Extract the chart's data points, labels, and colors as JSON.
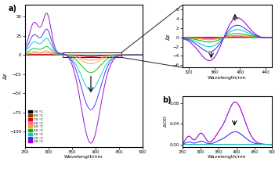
{
  "temps": [
    "90 °C",
    "80 °C",
    "70 °C",
    "60 °C",
    "50 °C",
    "40 °C",
    "30 °C",
    "25 °C",
    "20 °C"
  ],
  "colors": [
    "#000000",
    "#7B3F00",
    "#DD0000",
    "#FF69B4",
    "#FFA500",
    "#00BB00",
    "#00CCCC",
    "#3333FF",
    "#9900CC"
  ],
  "scales_cd": [
    0.003,
    0.007,
    0.02,
    0.06,
    0.1,
    0.2,
    0.4,
    0.62,
    1.0
  ],
  "scales_ld": [
    0.0,
    0.0,
    0.0,
    0.0,
    0.0,
    0.0,
    0.0,
    0.3,
    1.0
  ],
  "wl_min": 250,
  "wl_max": 500,
  "zoom_wl_min": 310,
  "zoom_wl_max": 450,
  "cd_ylim": [
    -120,
    65
  ],
  "cd_zoom_ylim": [
    -6.5,
    7.0
  ],
  "ld_ylim": [
    -0.005,
    0.095
  ],
  "bg": "#ffffff"
}
